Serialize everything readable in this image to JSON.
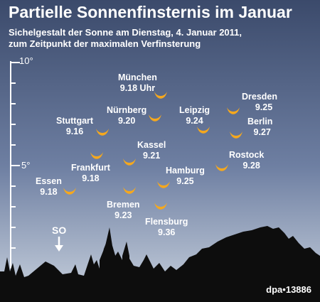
{
  "title": "Partielle Sonnenfinsternis im Januar",
  "subtitle_line1": "Sichelgestalt der Sonne am Dienstag, 4. Januar 2011,",
  "subtitle_line2": "zum Zeitpunkt der maximalen Verfinsterung",
  "axis": {
    "label_top": "10°",
    "label_mid": "5°"
  },
  "direction_label": "SO",
  "credit": "dpa•13886",
  "colors": {
    "sky_top": "#3b4a6b",
    "crescent": "#f5a81e",
    "silhouette": "#0d0d0d"
  },
  "cities": [
    {
      "name": "München",
      "time": "9.18 Uhr"
    },
    {
      "name": "Dresden",
      "time": "9.25"
    },
    {
      "name": "Nürnberg",
      "time": "9.20"
    },
    {
      "name": "Leipzig",
      "time": "9.24"
    },
    {
      "name": "Stuttgart",
      "time": "9.16"
    },
    {
      "name": "Berlin",
      "time": "9.27"
    },
    {
      "name": "Kassel",
      "time": "9.21"
    },
    {
      "name": "Rostock",
      "time": "9.28"
    },
    {
      "name": "Frankfurt",
      "time": "9.18"
    },
    {
      "name": "Hamburg",
      "time": "9.25"
    },
    {
      "name": "Essen",
      "time": "9.18"
    },
    {
      "name": "Bremen",
      "time": "9.23"
    },
    {
      "name": "Flensburg",
      "time": "9.36"
    }
  ]
}
